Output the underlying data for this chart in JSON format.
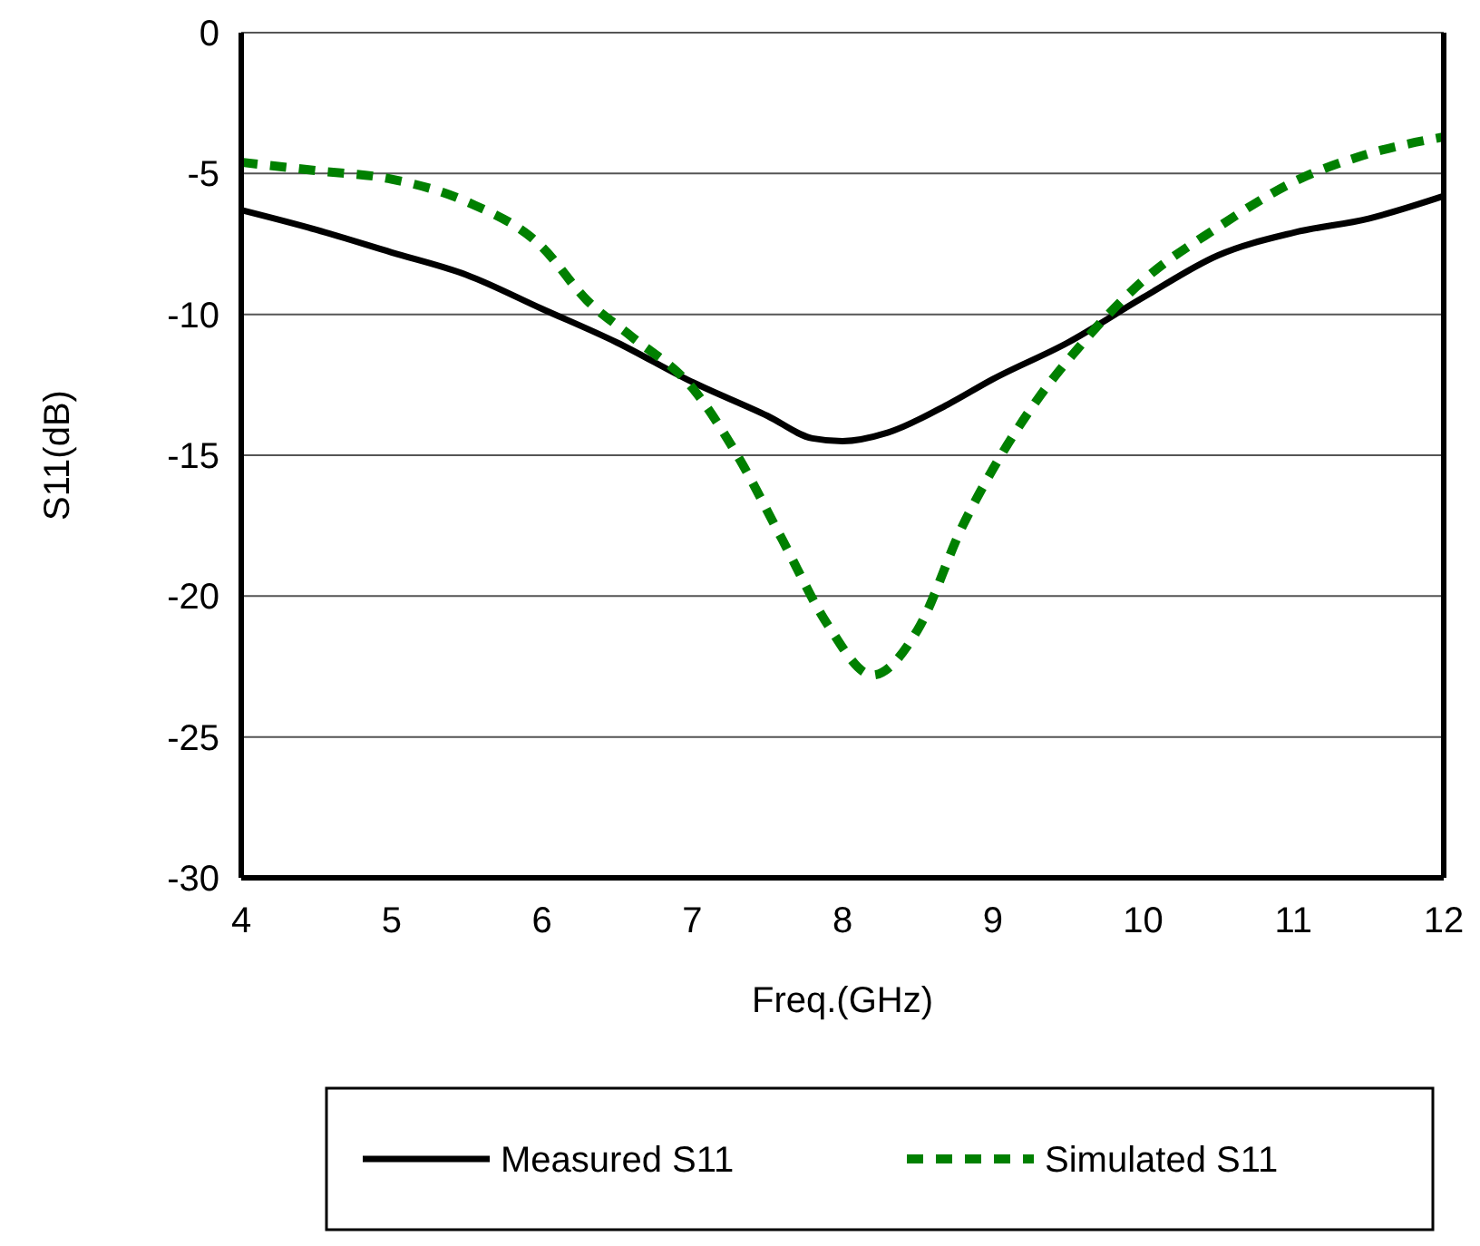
{
  "chart_data": {
    "type": "line",
    "xlabel": "Freq.(GHz)",
    "ylabel": "S11(dB)",
    "xlim": [
      4,
      12
    ],
    "xticks": [
      4,
      5,
      6,
      7,
      8,
      9,
      10,
      11,
      12
    ],
    "ylim": [
      -30,
      0
    ],
    "yticks": [
      -30,
      -25,
      -20,
      -15,
      -10,
      -5,
      0
    ],
    "grid": "y",
    "legend": "bottom",
    "series": [
      {
        "name": "Measured S11",
        "color": "#000000",
        "line_style": "solid",
        "x": [
          4,
          4.5,
          5,
          5.5,
          6,
          6.5,
          7,
          7.5,
          7.8,
          8,
          8.3,
          8.7,
          9,
          9.5,
          10,
          10.5,
          11,
          11.5,
          12
        ],
        "values": [
          -6.3,
          -7.0,
          -7.8,
          -8.6,
          -9.8,
          -11.0,
          -12.4,
          -13.6,
          -14.4,
          -14.5,
          -14.2,
          -13.2,
          -12.3,
          -11.0,
          -9.4,
          -7.9,
          -7.1,
          -6.6,
          -5.8
        ]
      },
      {
        "name": "Simulated S11",
        "color": "#008000",
        "line_style": "dashed",
        "x": [
          4,
          4.5,
          5,
          5.5,
          6,
          6.3,
          6.6,
          7,
          7.3,
          7.6,
          7.9,
          8.2,
          8.5,
          8.8,
          9,
          9.3,
          9.6,
          10,
          10.5,
          11,
          11.5,
          12
        ],
        "values": [
          -4.6,
          -4.9,
          -5.2,
          -6.0,
          -7.6,
          -9.5,
          -10.8,
          -12.6,
          -15,
          -18,
          -21,
          -22.8,
          -21.2,
          -17.5,
          -15.5,
          -13,
          -11,
          -8.8,
          -6.9,
          -5.3,
          -4.3,
          -3.7
        ]
      }
    ]
  }
}
